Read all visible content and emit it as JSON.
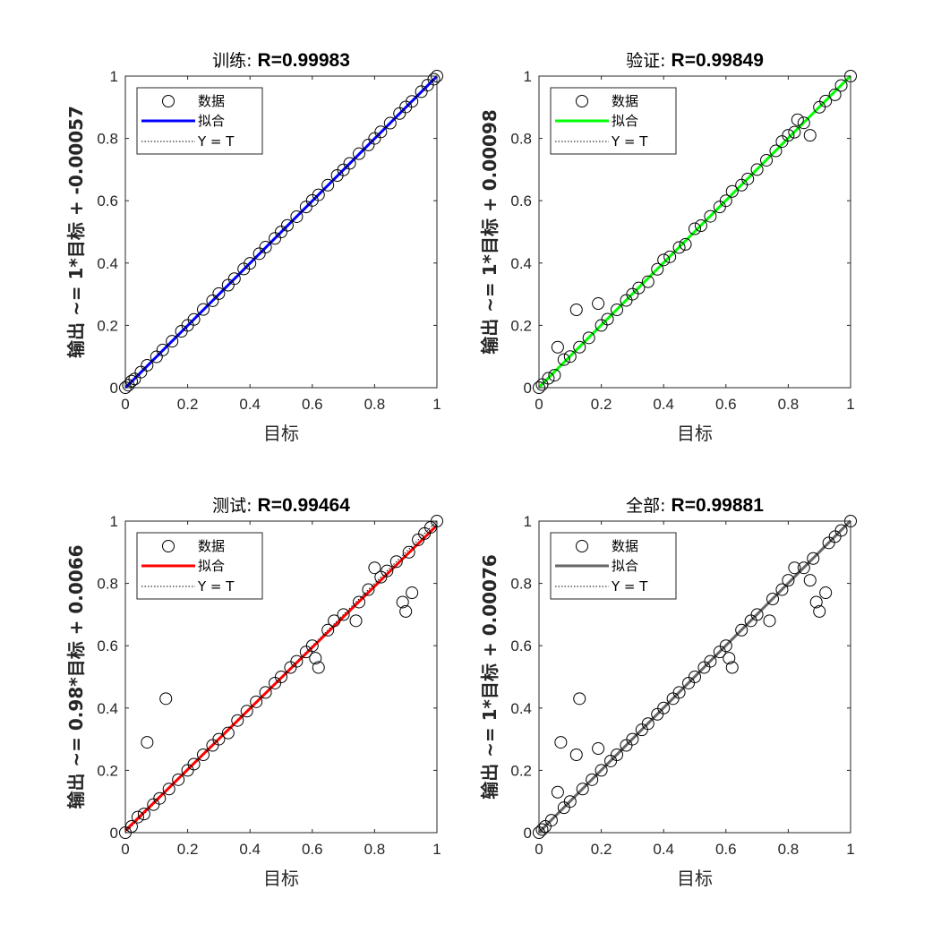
{
  "figure": {
    "background": "#ffffff"
  },
  "legend_labels": {
    "data": "数据",
    "fit": "拟合",
    "ideal": "Y = T"
  },
  "chart_data": [
    {
      "type": "scatter",
      "panel": "top-left",
      "title_prefix": "训练:",
      "title_r": "R=0.99983",
      "xlabel": "目标",
      "ylabel": "输出 ~= 1*目标 + -0.00057",
      "xlim": [
        0,
        1
      ],
      "ylim": [
        0,
        1
      ],
      "xticks": [
        "0",
        "0.2",
        "0.4",
        "0.6",
        "0.8",
        "1"
      ],
      "yticks": [
        "0",
        "0.2",
        "0.4",
        "0.6",
        "0.8",
        "1"
      ],
      "fit": {
        "slope": 1,
        "intercept": -0.00057,
        "color": "#0000ff"
      },
      "legend_position": "top-left",
      "series_color": "#000000",
      "points": [
        [
          0,
          0
        ],
        [
          0.01,
          0.008
        ],
        [
          0.02,
          0.021
        ],
        [
          0.03,
          0.028
        ],
        [
          0.05,
          0.05
        ],
        [
          0.07,
          0.072
        ],
        [
          0.1,
          0.099
        ],
        [
          0.12,
          0.121
        ],
        [
          0.15,
          0.149
        ],
        [
          0.18,
          0.181
        ],
        [
          0.2,
          0.2
        ],
        [
          0.22,
          0.219
        ],
        [
          0.25,
          0.251
        ],
        [
          0.28,
          0.279
        ],
        [
          0.3,
          0.302
        ],
        [
          0.33,
          0.329
        ],
        [
          0.35,
          0.35
        ],
        [
          0.38,
          0.381
        ],
        [
          0.4,
          0.399
        ],
        [
          0.43,
          0.43
        ],
        [
          0.45,
          0.451
        ],
        [
          0.48,
          0.479
        ],
        [
          0.5,
          0.5
        ],
        [
          0.52,
          0.521
        ],
        [
          0.55,
          0.549
        ],
        [
          0.58,
          0.58
        ],
        [
          0.6,
          0.601
        ],
        [
          0.62,
          0.619
        ],
        [
          0.65,
          0.65
        ],
        [
          0.68,
          0.681
        ],
        [
          0.7,
          0.699
        ],
        [
          0.72,
          0.72
        ],
        [
          0.75,
          0.751
        ],
        [
          0.78,
          0.779
        ],
        [
          0.8,
          0.8
        ],
        [
          0.82,
          0.821
        ],
        [
          0.85,
          0.849
        ],
        [
          0.88,
          0.88
        ],
        [
          0.9,
          0.901
        ],
        [
          0.92,
          0.919
        ],
        [
          0.95,
          0.95
        ],
        [
          0.97,
          0.971
        ],
        [
          0.99,
          0.99
        ],
        [
          1,
          1
        ]
      ]
    },
    {
      "type": "scatter",
      "panel": "top-right",
      "title_prefix": "验证:",
      "title_r": "R=0.99849",
      "xlabel": "目标",
      "ylabel": "输出 ~= 1*目标 + 0.00098",
      "xlim": [
        0,
        1
      ],
      "ylim": [
        0,
        1
      ],
      "xticks": [
        "0",
        "0.2",
        "0.4",
        "0.6",
        "0.8",
        "1"
      ],
      "yticks": [
        "0",
        "0.2",
        "0.4",
        "0.6",
        "0.8",
        "1"
      ],
      "fit": {
        "slope": 1,
        "intercept": 0.00098,
        "color": "#00ff00"
      },
      "legend_position": "top-left",
      "series_color": "#000000",
      "points": [
        [
          0,
          0
        ],
        [
          0.01,
          0.01
        ],
        [
          0.03,
          0.03
        ],
        [
          0.05,
          0.04
        ],
        [
          0.06,
          0.13
        ],
        [
          0.08,
          0.09
        ],
        [
          0.1,
          0.1
        ],
        [
          0.12,
          0.25
        ],
        [
          0.13,
          0.13
        ],
        [
          0.16,
          0.16
        ],
        [
          0.19,
          0.27
        ],
        [
          0.2,
          0.2
        ],
        [
          0.22,
          0.22
        ],
        [
          0.25,
          0.25
        ],
        [
          0.28,
          0.28
        ],
        [
          0.3,
          0.3
        ],
        [
          0.32,
          0.32
        ],
        [
          0.35,
          0.34
        ],
        [
          0.38,
          0.38
        ],
        [
          0.4,
          0.41
        ],
        [
          0.42,
          0.42
        ],
        [
          0.45,
          0.45
        ],
        [
          0.47,
          0.46
        ],
        [
          0.5,
          0.51
        ],
        [
          0.52,
          0.52
        ],
        [
          0.55,
          0.55
        ],
        [
          0.58,
          0.58
        ],
        [
          0.6,
          0.6
        ],
        [
          0.62,
          0.63
        ],
        [
          0.65,
          0.65
        ],
        [
          0.67,
          0.67
        ],
        [
          0.7,
          0.7
        ],
        [
          0.73,
          0.73
        ],
        [
          0.76,
          0.76
        ],
        [
          0.78,
          0.79
        ],
        [
          0.8,
          0.81
        ],
        [
          0.82,
          0.82
        ],
        [
          0.83,
          0.86
        ],
        [
          0.85,
          0.85
        ],
        [
          0.87,
          0.81
        ],
        [
          0.9,
          0.9
        ],
        [
          0.92,
          0.92
        ],
        [
          0.95,
          0.94
        ],
        [
          0.97,
          0.97
        ],
        [
          1,
          1
        ]
      ]
    },
    {
      "type": "scatter",
      "panel": "bottom-left",
      "title_prefix": "测试:",
      "title_r": "R=0.99464",
      "xlabel": "目标",
      "ylabel": "输出 ~= 0.98*目标 + 0.0066",
      "xlim": [
        0,
        1
      ],
      "ylim": [
        0,
        1
      ],
      "xticks": [
        "0",
        "0.2",
        "0.4",
        "0.6",
        "0.8",
        "1"
      ],
      "yticks": [
        "0",
        "0.2",
        "0.4",
        "0.6",
        "0.8",
        "1"
      ],
      "fit": {
        "slope": 0.98,
        "intercept": 0.0066,
        "color": "#ff0000"
      },
      "legend_position": "top-left",
      "series_color": "#000000",
      "points": [
        [
          0,
          0
        ],
        [
          0.02,
          0.02
        ],
        [
          0.04,
          0.05
        ],
        [
          0.06,
          0.06
        ],
        [
          0.07,
          0.29
        ],
        [
          0.09,
          0.09
        ],
        [
          0.11,
          0.11
        ],
        [
          0.13,
          0.43
        ],
        [
          0.14,
          0.14
        ],
        [
          0.17,
          0.17
        ],
        [
          0.2,
          0.2
        ],
        [
          0.22,
          0.22
        ],
        [
          0.25,
          0.25
        ],
        [
          0.28,
          0.28
        ],
        [
          0.3,
          0.3
        ],
        [
          0.33,
          0.32
        ],
        [
          0.36,
          0.36
        ],
        [
          0.39,
          0.39
        ],
        [
          0.42,
          0.42
        ],
        [
          0.45,
          0.45
        ],
        [
          0.48,
          0.48
        ],
        [
          0.5,
          0.5
        ],
        [
          0.53,
          0.53
        ],
        [
          0.55,
          0.55
        ],
        [
          0.58,
          0.58
        ],
        [
          0.6,
          0.6
        ],
        [
          0.61,
          0.56
        ],
        [
          0.62,
          0.53
        ],
        [
          0.65,
          0.65
        ],
        [
          0.67,
          0.68
        ],
        [
          0.7,
          0.7
        ],
        [
          0.74,
          0.68
        ],
        [
          0.75,
          0.74
        ],
        [
          0.78,
          0.78
        ],
        [
          0.8,
          0.85
        ],
        [
          0.82,
          0.82
        ],
        [
          0.84,
          0.84
        ],
        [
          0.87,
          0.87
        ],
        [
          0.89,
          0.74
        ],
        [
          0.9,
          0.71
        ],
        [
          0.91,
          0.9
        ],
        [
          0.92,
          0.77
        ],
        [
          0.94,
          0.94
        ],
        [
          0.96,
          0.96
        ],
        [
          0.98,
          0.98
        ],
        [
          1,
          1
        ]
      ]
    },
    {
      "type": "scatter",
      "panel": "bottom-right",
      "title_prefix": "全部:",
      "title_r": "R=0.99881",
      "xlabel": "目标",
      "ylabel": "输出 ~= 1*目标 + 0.00076",
      "xlim": [
        0,
        1
      ],
      "ylim": [
        0,
        1
      ],
      "xticks": [
        "0",
        "0.2",
        "0.4",
        "0.6",
        "0.8",
        "1"
      ],
      "yticks": [
        "0",
        "0.2",
        "0.4",
        "0.6",
        "0.8",
        "1"
      ],
      "fit": {
        "slope": 1,
        "intercept": 0.00076,
        "color": "#666666"
      },
      "legend_position": "top-left",
      "series_color": "#000000",
      "points": [
        [
          0,
          0
        ],
        [
          0.01,
          0.01
        ],
        [
          0.02,
          0.02
        ],
        [
          0.04,
          0.04
        ],
        [
          0.06,
          0.13
        ],
        [
          0.07,
          0.29
        ],
        [
          0.08,
          0.08
        ],
        [
          0.1,
          0.1
        ],
        [
          0.12,
          0.25
        ],
        [
          0.13,
          0.43
        ],
        [
          0.14,
          0.14
        ],
        [
          0.17,
          0.17
        ],
        [
          0.19,
          0.27
        ],
        [
          0.2,
          0.2
        ],
        [
          0.23,
          0.23
        ],
        [
          0.25,
          0.25
        ],
        [
          0.28,
          0.28
        ],
        [
          0.3,
          0.3
        ],
        [
          0.33,
          0.33
        ],
        [
          0.35,
          0.35
        ],
        [
          0.38,
          0.38
        ],
        [
          0.4,
          0.4
        ],
        [
          0.43,
          0.43
        ],
        [
          0.45,
          0.45
        ],
        [
          0.48,
          0.48
        ],
        [
          0.5,
          0.5
        ],
        [
          0.53,
          0.53
        ],
        [
          0.55,
          0.55
        ],
        [
          0.58,
          0.58
        ],
        [
          0.6,
          0.6
        ],
        [
          0.61,
          0.56
        ],
        [
          0.62,
          0.53
        ],
        [
          0.65,
          0.65
        ],
        [
          0.68,
          0.68
        ],
        [
          0.7,
          0.7
        ],
        [
          0.74,
          0.68
        ],
        [
          0.75,
          0.75
        ],
        [
          0.78,
          0.78
        ],
        [
          0.8,
          0.81
        ],
        [
          0.82,
          0.85
        ],
        [
          0.85,
          0.85
        ],
        [
          0.87,
          0.81
        ],
        [
          0.88,
          0.88
        ],
        [
          0.89,
          0.74
        ],
        [
          0.9,
          0.71
        ],
        [
          0.92,
          0.77
        ],
        [
          0.93,
          0.93
        ],
        [
          0.95,
          0.95
        ],
        [
          0.97,
          0.97
        ],
        [
          1,
          1
        ]
      ]
    }
  ]
}
